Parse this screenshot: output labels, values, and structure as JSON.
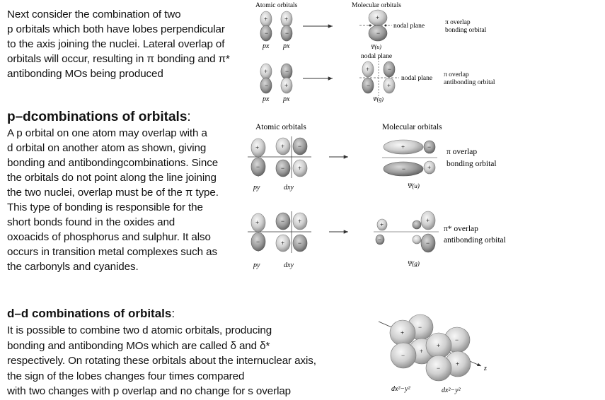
{
  "section_pi": {
    "text": "Next consider the combination of two\np orbitals which both have lobes perpendicular\n to the axis joining the nuclei. Lateral overlap of\norbitals will occur, resulting in π bonding and π*\nantibonding MOs being produced"
  },
  "section_pd": {
    "heading": "p–dcombinations of orbitals",
    "heading_suffix": ":",
    "text": "A p orbital on one atom may overlap with a\n d orbital on another atom as shown, giving\nbonding and antibondingcombinations. Since\n the orbitals do not point along the line joining\nthe two nuclei, overlap must be of the π type.\nThis type of bonding is responsible for the\n short bonds found in the oxides and\noxoacids  of phosphorus and sulphur. It also\noccurs in  transition metal complexes such as\nthe carbonyls and cyanides."
  },
  "section_dd": {
    "heading": "d–d combinations of orbitals",
    "heading_suffix": ":",
    "text": "It is possible to combine two d atomic orbitals, producing\nbonding and antibonding MOs which are called δ and δ*\nrespectively. On rotating these orbitals about the internuclear axis,\n the sign of the lobes changes four times compared\nwith two changes with p overlap and no change for s overlap"
  },
  "figure_pp": {
    "atomic_label": "Atomic orbitals",
    "molecular_label": "Molecular orbitals",
    "nodal_plane": "nodal plane",
    "nodal_plane_2": "nodal plane",
    "orbital_label": "px",
    "bonding_label_1": "π overlap",
    "bonding_label_2": "bonding orbital",
    "anti_label_1": "π overlap",
    "anti_label_2": "antibonding orbital",
    "psi_u": "Ψ(u)",
    "psi_g": "Ψ(g)"
  },
  "figure_pd": {
    "atomic_label": "Atomic orbitals",
    "molecular_label": "Molecular orbitals",
    "p_label": "py",
    "d_label": "dxy",
    "bonding_label_1": "π overlap",
    "bonding_label_2": "bonding orbital",
    "anti_label_1": "π* overlap",
    "anti_label_2": "antibonding orbital",
    "psi_u": "Ψ(u)",
    "psi_g": "Ψ(g)"
  },
  "figure_dd": {
    "d_label": "dx²−y²",
    "axis_label": "z"
  },
  "colors": {
    "lobe_light": "#e6e6e6",
    "lobe_dark": "#8a8a8a",
    "text": "#111111"
  }
}
